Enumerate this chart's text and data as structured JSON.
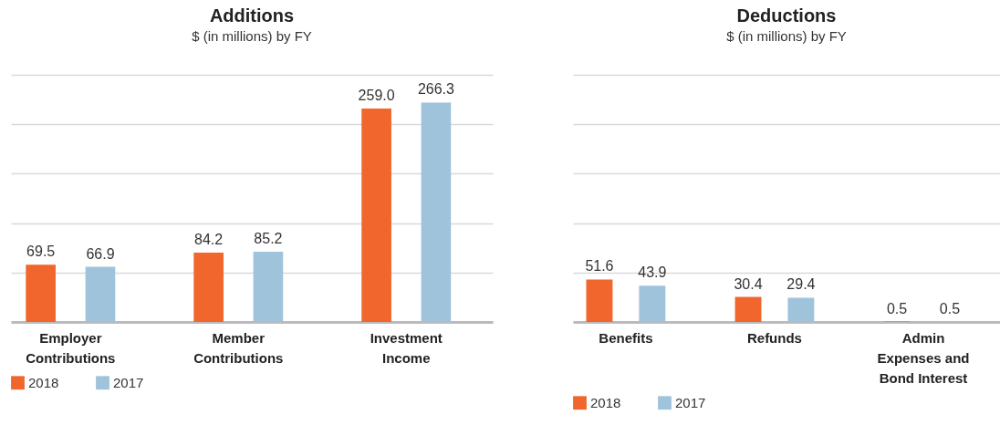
{
  "chart_data": [
    {
      "type": "bar",
      "title": "Additions",
      "subtitle": "$ (in millions) by FY",
      "categories": [
        "Employer\nContributions",
        "Member\nContributions",
        "Investment\nIncome"
      ],
      "series": [
        {
          "name": "2018",
          "color": "#f1662c",
          "values": [
            69.5,
            84.2,
            259.0
          ],
          "value_labels": [
            "69.5",
            "84.2",
            "259.0"
          ]
        },
        {
          "name": "2017",
          "color": "#a0c3dc",
          "values": [
            66.9,
            85.2,
            266.3
          ],
          "value_labels": [
            "66.9",
            "85.2",
            "266.3"
          ]
        }
      ],
      "ylim": [
        0,
        300
      ],
      "tick_labels": "x",
      "grid": "y",
      "legend": "bottom"
    },
    {
      "type": "bar",
      "title": "Deductions",
      "subtitle": "$ (in millions) by FY",
      "categories": [
        "Benefits",
        "Refunds",
        "Admin\nExpenses and\nBond Interest"
      ],
      "series": [
        {
          "name": "2018",
          "color": "#f1662c",
          "values": [
            51.6,
            30.4,
            0.5
          ],
          "value_labels": [
            "51.6",
            "30.4",
            "0.5"
          ]
        },
        {
          "name": "2017",
          "color": "#a0c3dc",
          "values": [
            43.9,
            29.4,
            0.5
          ],
          "value_labels": [
            "43.9",
            "29.4",
            "0.5"
          ]
        }
      ],
      "ylim": [
        0,
        300
      ],
      "tick_labels": "x",
      "grid": "y",
      "legend": "bottom"
    }
  ]
}
